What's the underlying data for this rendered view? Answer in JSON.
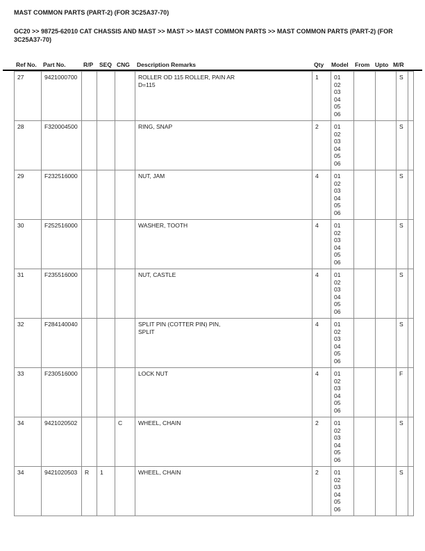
{
  "page": {
    "title": "MAST COMMON PARTS (PART-2) (FOR 3C25A37-70)",
    "breadcrumb": "GC20 >> 98725-62010 CAT CHASSIS AND MAST >> MAST >> MAST COMMON PARTS >> MAST COMMON PARTS (PART-2) (FOR 3C25A37-70)"
  },
  "colors": {
    "text": "#1a1a1a",
    "table_border": "#8c8c8c",
    "header_rule": "#000000",
    "background": "#ffffff"
  },
  "table": {
    "columns": [
      "Ref No.",
      "Part No.",
      "R/P",
      "SEQ",
      "CNG",
      "Description Remarks",
      "Qty",
      "Model",
      "From",
      "Upto",
      "M/R"
    ],
    "rows": [
      {
        "ref": "27",
        "part": "9421000700",
        "rp": "",
        "seq": "",
        "cng": "",
        "desc": [
          "ROLLER OD 115 ROLLER, PAIN AR",
          "D=115"
        ],
        "qty": "1",
        "model": [
          "01",
          "02",
          "03",
          "04",
          "05",
          "06"
        ],
        "from": "",
        "upto": "",
        "mr": "S"
      },
      {
        "ref": "28",
        "part": "F320004500",
        "rp": "",
        "seq": "",
        "cng": "",
        "desc": [
          "RING, SNAP"
        ],
        "qty": "2",
        "model": [
          "01",
          "02",
          "03",
          "04",
          "05",
          "06"
        ],
        "from": "",
        "upto": "",
        "mr": "S"
      },
      {
        "ref": "29",
        "part": "F232516000",
        "rp": "",
        "seq": "",
        "cng": "",
        "desc": [
          "NUT, JAM"
        ],
        "qty": "4",
        "model": [
          "01",
          "02",
          "03",
          "04",
          "05",
          "06"
        ],
        "from": "",
        "upto": "",
        "mr": "S"
      },
      {
        "ref": "30",
        "part": "F252516000",
        "rp": "",
        "seq": "",
        "cng": "",
        "desc": [
          "WASHER, TOOTH"
        ],
        "qty": "4",
        "model": [
          "01",
          "02",
          "03",
          "04",
          "05",
          "06"
        ],
        "from": "",
        "upto": "",
        "mr": "S"
      },
      {
        "ref": "31",
        "part": "F235516000",
        "rp": "",
        "seq": "",
        "cng": "",
        "desc": [
          "NUT, CASTLE"
        ],
        "qty": "4",
        "model": [
          "01",
          "02",
          "03",
          "04",
          "05",
          "06"
        ],
        "from": "",
        "upto": "",
        "mr": "S"
      },
      {
        "ref": "32",
        "part": "F284140040",
        "rp": "",
        "seq": "",
        "cng": "",
        "desc": [
          "SPLIT PIN (COTTER PIN) PIN,",
          "SPLIT"
        ],
        "qty": "4",
        "model": [
          "01",
          "02",
          "03",
          "04",
          "05",
          "06"
        ],
        "from": "",
        "upto": "",
        "mr": "S"
      },
      {
        "ref": "33",
        "part": "F230516000",
        "rp": "",
        "seq": "",
        "cng": "",
        "desc": [
          "LOCK NUT"
        ],
        "qty": "4",
        "model": [
          "01",
          "02",
          "03",
          "04",
          "05",
          "06"
        ],
        "from": "",
        "upto": "",
        "mr": "F"
      },
      {
        "ref": "34",
        "part": "9421020502",
        "rp": "",
        "seq": "",
        "cng": "C",
        "desc": [
          "WHEEL, CHAIN"
        ],
        "qty": "2",
        "model": [
          "01",
          "02",
          "03",
          "04",
          "05",
          "06"
        ],
        "from": "",
        "upto": "",
        "mr": "S"
      },
      {
        "ref": "34",
        "part": "9421020503",
        "rp": "R",
        "seq": "1",
        "cng": "",
        "desc": [
          "WHEEL, CHAIN"
        ],
        "qty": "2",
        "model": [
          "01",
          "02",
          "03",
          "04",
          "05",
          "06"
        ],
        "from": "",
        "upto": "",
        "mr": "S"
      }
    ]
  }
}
